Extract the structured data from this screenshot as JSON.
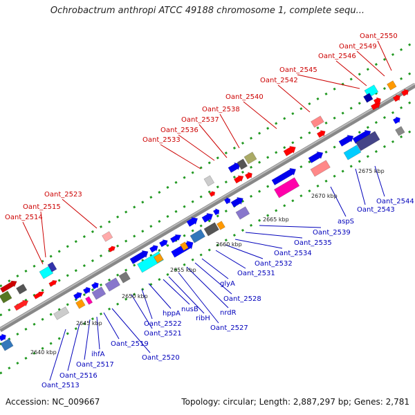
{
  "header": {
    "title": "Ochrobactrum anthropi ATCC 49188 chromosome 1, complete sequ..."
  },
  "footer": {
    "accession": "Accession: NC_009667",
    "summary": "Topology: circular; Length: 2,887,297 bp; Genes: 2,781"
  },
  "colors": {
    "upper_label": "#cc0000",
    "lower_label": "#0000bb",
    "backbone": "#888888",
    "dots": "#229922"
  },
  "ticks": [
    "2640 kbp",
    "2645 kbp",
    "2650 kbp",
    "2655 kbp",
    "2660 kbp",
    "2665 kbp",
    "2670 kbp",
    "2675 kbp"
  ],
  "upper_labels": [
    "Oant_2514",
    "Oant_2515",
    "Oant_2523",
    "Oant_2533",
    "Oant_2536",
    "Oant_2537",
    "Oant_2538",
    "Oant_2540",
    "Oant_2542",
    "Oant_2545",
    "Oant_2546",
    "Oant_2549",
    "Oant_2550"
  ],
  "lower_labels": [
    "Oant_2513",
    "Oant_2516",
    "Oant_2517",
    "ihfA",
    "Oant_2519",
    "Oant_2520",
    "Oant_2521",
    "Oant_2522",
    "hppA",
    "nusB",
    "ribH",
    "Oant_2527",
    "nrdR",
    "Oant_2528",
    "glyA",
    "Oant_2531",
    "Oant_2532",
    "Oant_2534",
    "Oant_2535",
    "Oant_2539",
    "aspS",
    "Oant_2543",
    "Oant_2544"
  ]
}
